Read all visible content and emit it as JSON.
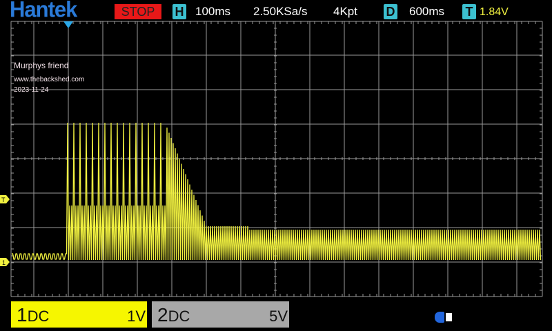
{
  "header": {
    "logo": "Hantek",
    "run_state": "STOP",
    "horizontal_badge": "H",
    "timebase": "100ms",
    "sample_rate": "2.50KSa/s",
    "memory_depth": "4Kpt",
    "delay_badge": "D",
    "delay": "600ms",
    "trigger_badge": "T",
    "trigger_level": "1.84V"
  },
  "annotations": {
    "line1": "Murphys friend",
    "line2": "www.thebackshed.com",
    "line3": "2023-11-24"
  },
  "markers": {
    "trigger": "T",
    "ch1": "1"
  },
  "channels": [
    {
      "number": "1",
      "coupling": "DC",
      "scale": "1V",
      "color": "#f6f600"
    },
    {
      "number": "2",
      "coupling": "DC",
      "scale": "5V",
      "color": "#a8a8a8"
    }
  ],
  "colors": {
    "trace": "#f2f240",
    "grid": "#9a9a9a",
    "accent": "#3cc0d0",
    "stop": "#e81818"
  },
  "status": {
    "usb_icon": "usb-icon"
  }
}
